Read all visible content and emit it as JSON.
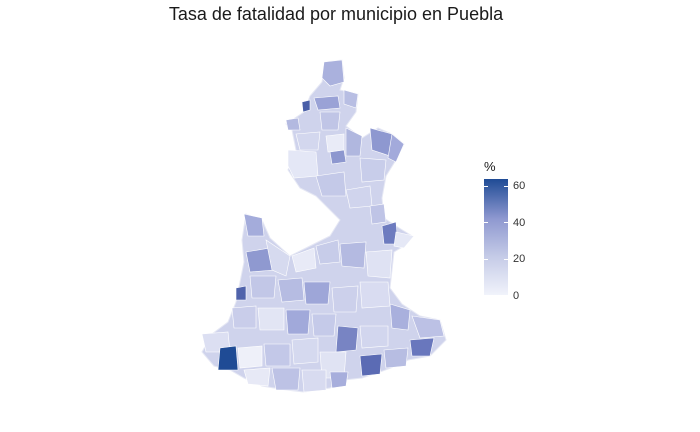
{
  "title": "Tasa de fatalidad por municipio en Puebla",
  "legend": {
    "title": "%",
    "ticks": [
      "60",
      "40",
      "20",
      "0"
    ],
    "colors": {
      "low": "#f1f3fb",
      "mid": "#8e98d0",
      "high": "#1f4b95"
    }
  },
  "map": {
    "region": "Puebla",
    "base_color": "#c9cde9",
    "darkest_color": "#1f4b95"
  }
}
